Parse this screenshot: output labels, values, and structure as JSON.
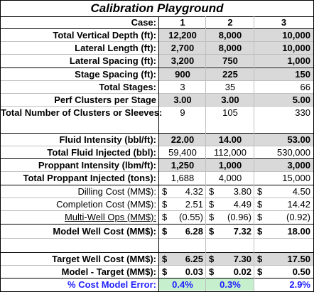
{
  "title": "Calibration Playground",
  "header": {
    "label": "Case:",
    "cases": [
      "1",
      "2",
      "3"
    ]
  },
  "rows": {
    "tvd": {
      "label": "Total Vertical Depth (ft):",
      "v": [
        "12,200",
        "8,000",
        "10,000"
      ]
    },
    "lateral_length": {
      "label": "Lateral Length (ft):",
      "v": [
        "2,700",
        "8,000",
        "10,000"
      ]
    },
    "lateral_spacing": {
      "label": "Lateral Spacing (ft):",
      "v": [
        "3,200",
        "750",
        "1,000"
      ]
    },
    "stage_spacing": {
      "label": "Stage Spacing (ft):",
      "v": [
        "900",
        "225",
        "150"
      ]
    },
    "total_stages": {
      "label": "Total Stages:",
      "v": [
        "3",
        "35",
        "66"
      ]
    },
    "perf_clusters": {
      "label": "Perf Clusters per Stage",
      "v": [
        "3.00",
        "3.00",
        "5.00"
      ]
    },
    "total_clusters": {
      "label": "Total Number of Clusters or Sleeves:",
      "v": [
        "9",
        "105",
        "330"
      ]
    },
    "fluid_intensity": {
      "label": "Fluid Intensity (bbl/ft):",
      "v": [
        "22.00",
        "14.00",
        "53.00"
      ]
    },
    "total_fluid": {
      "label": "Total Fluid Injected (bbl):",
      "v": [
        "59,400",
        "112,000",
        "530,000"
      ]
    },
    "proppant_intensity": {
      "label": "Proppant Intensity (lbm/ft):",
      "v": [
        "1,250",
        "1,000",
        "3,000"
      ]
    },
    "total_proppant": {
      "label": "Total Proppant Injected (tons):",
      "v": [
        "1,688",
        "4,000",
        "15,000"
      ]
    },
    "drilling_cost": {
      "label": "Dilling Cost (MM$):",
      "v": [
        "4.32",
        "3.80",
        "4.50"
      ]
    },
    "completion_cost": {
      "label": "Completion Cost (MM$):",
      "v": [
        "2.51",
        "4.49",
        "14.42"
      ]
    },
    "multiwell": {
      "label": "Multi-Well Ops (MM$):",
      "v": [
        "(0.55)",
        "(0.96)",
        "(0.92)"
      ]
    },
    "model_cost": {
      "label": "Model Well Cost (MM$):",
      "v": [
        "6.28",
        "7.32",
        "18.00"
      ]
    },
    "target_cost": {
      "label": "Target Well Cost (MM$):",
      "v": [
        "6.25",
        "7.30",
        "17.50"
      ]
    },
    "model_minus_target": {
      "label": "Model - Target (MM$):",
      "v": [
        "0.03",
        "0.02",
        "0.50"
      ]
    },
    "error": {
      "label": "% Cost Model Error:",
      "v": [
        "0.4%",
        "0.3%",
        "2.9%"
      ]
    }
  },
  "currency_symbol": "$",
  "colors": {
    "shade": "#d9d9d9",
    "good": "#c6efce",
    "bad": "#ffc7ce",
    "error_text": "#1f1fff"
  }
}
